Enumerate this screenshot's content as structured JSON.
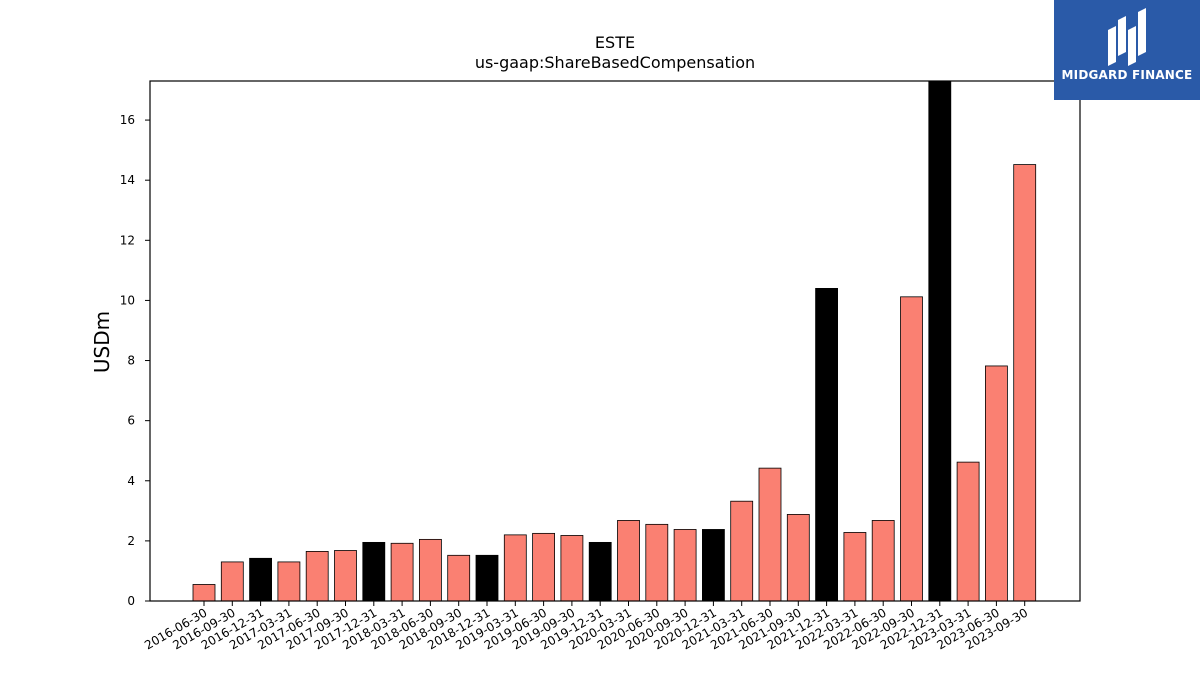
{
  "chart_data": {
    "type": "bar",
    "title": "ESTE",
    "subtitle": "us-gaap:ShareBasedCompensation",
    "xlabel": "",
    "ylabel": "USDm",
    "ylim": [
      0,
      17.3
    ],
    "yticks": [
      0,
      2,
      4,
      6,
      8,
      10,
      12,
      14,
      16
    ],
    "grid": false,
    "colors": {
      "quarter": "#fa8072",
      "year_end": "#000000"
    },
    "categories": [
      "2016-06-30",
      "2016-09-30",
      "2016-12-31",
      "2017-03-31",
      "2017-06-30",
      "2017-09-30",
      "2017-12-31",
      "2018-03-31",
      "2018-06-30",
      "2018-09-30",
      "2018-12-31",
      "2019-03-31",
      "2019-06-30",
      "2019-09-30",
      "2019-12-31",
      "2020-03-31",
      "2020-06-30",
      "2020-09-30",
      "2020-12-31",
      "2021-03-31",
      "2021-06-30",
      "2021-09-30",
      "2021-12-31",
      "2022-03-31",
      "2022-06-30",
      "2022-09-30",
      "2022-12-31",
      "2023-03-31",
      "2023-06-30",
      "2023-09-30"
    ],
    "values": [
      0.55,
      1.3,
      1.42,
      1.3,
      1.65,
      1.68,
      1.95,
      1.92,
      2.05,
      1.52,
      1.52,
      2.2,
      2.25,
      2.18,
      1.95,
      2.68,
      2.55,
      2.38,
      2.38,
      3.32,
      4.42,
      2.88,
      10.4,
      2.28,
      2.68,
      10.12,
      17.3,
      4.62,
      7.82,
      14.52
    ],
    "highlight": [
      false,
      false,
      true,
      false,
      false,
      false,
      true,
      false,
      false,
      false,
      true,
      false,
      false,
      false,
      true,
      false,
      false,
      false,
      true,
      false,
      false,
      false,
      true,
      false,
      false,
      false,
      true,
      false,
      false,
      false
    ]
  },
  "logo": {
    "text": "MIDGARD FINANCE",
    "name": "midgard-finance-logo"
  }
}
